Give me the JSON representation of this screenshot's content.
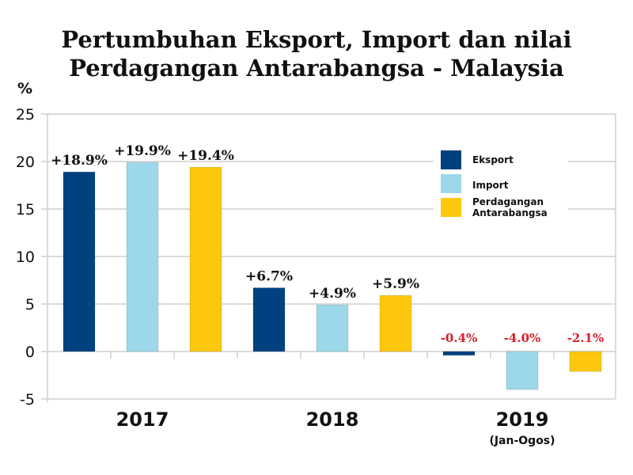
{
  "chart_data": {
    "type": "bar",
    "title_lines": [
      "Pertumbuhan Eksport, Import dan nilai",
      "Perdagangan Antarabangsa - Malaysia"
    ],
    "ylabel": "%",
    "ylim": [
      -5,
      25
    ],
    "yticks": [
      -5,
      0,
      5,
      10,
      15,
      20,
      25
    ],
    "grid": true,
    "legend_position": "top-right",
    "categories": [
      "2017",
      "2018",
      "2019"
    ],
    "category_sublabels": [
      "",
      "",
      "(Jan-Ogos)"
    ],
    "series": [
      {
        "name": "Eksport",
        "color": "#00427f",
        "values": [
          18.9,
          6.7,
          -0.4
        ],
        "labels": [
          "+18.9%",
          "+6.7%",
          "-0.4%"
        ]
      },
      {
        "name": "Import",
        "color": "#9dd8ea",
        "values": [
          19.9,
          4.9,
          -4.0
        ],
        "labels": [
          "+19.9%",
          "+4.9%",
          "-4.0%"
        ]
      },
      {
        "name": "Perdagangan Antarabangsa",
        "legend_lines": [
          "Perdagangan",
          "Antarabangsa"
        ],
        "color": "#fcc70c",
        "values": [
          19.4,
          5.9,
          -2.1
        ],
        "labels": [
          "+19.4%",
          "+5.9%",
          "-2.1%"
        ]
      }
    ],
    "label_colors": {
      "positive": "#111111",
      "negative": "#d3212d"
    }
  }
}
